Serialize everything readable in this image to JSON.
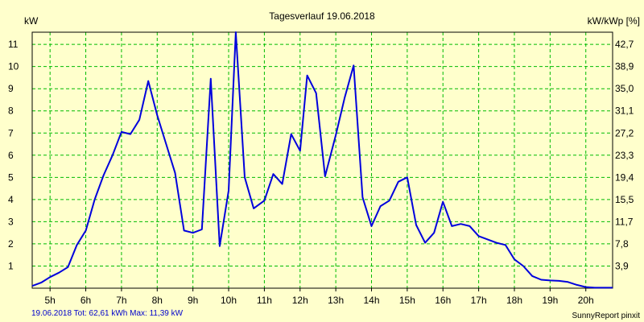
{
  "chart_data": {
    "type": "line",
    "title": "Tagesverlauf 19.06.2018",
    "ylabel_left": "kW",
    "ylabel_right": "kW/kWp [%]",
    "xlim": [
      4.5,
      20.75
    ],
    "ylim": [
      0,
      11.55
    ],
    "grid": true,
    "x_ticks": [
      {
        "value": 5,
        "label": "5h"
      },
      {
        "value": 6,
        "label": "6h"
      },
      {
        "value": 7,
        "label": "7h"
      },
      {
        "value": 8,
        "label": "8h"
      },
      {
        "value": 9,
        "label": "9h"
      },
      {
        "value": 10,
        "label": "10h"
      },
      {
        "value": 11,
        "label": "11h"
      },
      {
        "value": 12,
        "label": "12h"
      },
      {
        "value": 13,
        "label": "13h"
      },
      {
        "value": 14,
        "label": "14h"
      },
      {
        "value": 15,
        "label": "15h"
      },
      {
        "value": 16,
        "label": "16h"
      },
      {
        "value": 17,
        "label": "17h"
      },
      {
        "value": 18,
        "label": "18h"
      },
      {
        "value": 19,
        "label": "19h"
      },
      {
        "value": 20,
        "label": "20h"
      }
    ],
    "y_ticks_left": [
      {
        "value": 1,
        "label": "1"
      },
      {
        "value": 2,
        "label": "2"
      },
      {
        "value": 3,
        "label": "3"
      },
      {
        "value": 4,
        "label": "4"
      },
      {
        "value": 5,
        "label": "5"
      },
      {
        "value": 6,
        "label": "6"
      },
      {
        "value": 7,
        "label": "7"
      },
      {
        "value": 8,
        "label": "8"
      },
      {
        "value": 9,
        "label": "9"
      },
      {
        "value": 10,
        "label": "10"
      },
      {
        "value": 11,
        "label": "11"
      }
    ],
    "y_ticks_right": [
      {
        "value": 1,
        "label": "3,9"
      },
      {
        "value": 2,
        "label": "7,8"
      },
      {
        "value": 3,
        "label": "11,7"
      },
      {
        "value": 4,
        "label": "15,5"
      },
      {
        "value": 5,
        "label": "19,4"
      },
      {
        "value": 6,
        "label": "23,3"
      },
      {
        "value": 7,
        "label": "27,2"
      },
      {
        "value": 8,
        "label": "31,1"
      },
      {
        "value": 9,
        "label": "35,0"
      },
      {
        "value": 10,
        "label": "38,9"
      },
      {
        "value": 11,
        "label": "42,7"
      }
    ],
    "series": [
      {
        "color": "#0000dd",
        "points": [
          [
            4.5,
            0.1
          ],
          [
            4.75,
            0.25
          ],
          [
            5.0,
            0.5
          ],
          [
            5.25,
            0.7
          ],
          [
            5.5,
            0.95
          ],
          [
            5.75,
            1.95
          ],
          [
            6.0,
            2.6
          ],
          [
            6.25,
            4.0
          ],
          [
            6.5,
            5.1
          ],
          [
            6.75,
            6.0
          ],
          [
            7.0,
            7.05
          ],
          [
            7.25,
            6.95
          ],
          [
            7.5,
            7.6
          ],
          [
            7.75,
            9.35
          ],
          [
            8.0,
            7.8
          ],
          [
            8.25,
            6.5
          ],
          [
            8.5,
            5.2
          ],
          [
            8.75,
            2.6
          ],
          [
            9.0,
            2.5
          ],
          [
            9.25,
            2.65
          ],
          [
            9.5,
            9.45
          ],
          [
            9.75,
            1.9
          ],
          [
            10.0,
            4.4
          ],
          [
            10.2,
            11.55
          ],
          [
            10.45,
            5.0
          ],
          [
            10.7,
            3.6
          ],
          [
            11.0,
            3.95
          ],
          [
            11.25,
            5.15
          ],
          [
            11.5,
            4.7
          ],
          [
            11.75,
            6.95
          ],
          [
            12.0,
            6.2
          ],
          [
            12.2,
            9.6
          ],
          [
            12.45,
            8.8
          ],
          [
            12.7,
            5.05
          ],
          [
            13.0,
            6.9
          ],
          [
            13.25,
            8.6
          ],
          [
            13.5,
            10.05
          ],
          [
            13.75,
            4.1
          ],
          [
            14.0,
            2.8
          ],
          [
            14.25,
            3.7
          ],
          [
            14.5,
            3.95
          ],
          [
            14.75,
            4.8
          ],
          [
            15.0,
            5.0
          ],
          [
            15.25,
            2.85
          ],
          [
            15.5,
            2.05
          ],
          [
            15.75,
            2.5
          ],
          [
            16.0,
            3.9
          ],
          [
            16.25,
            2.8
          ],
          [
            16.5,
            2.9
          ],
          [
            16.75,
            2.8
          ],
          [
            17.0,
            2.35
          ],
          [
            17.25,
            2.2
          ],
          [
            17.5,
            2.05
          ],
          [
            17.75,
            1.95
          ],
          [
            18.0,
            1.3
          ],
          [
            18.25,
            1.0
          ],
          [
            18.5,
            0.55
          ],
          [
            18.75,
            0.38
          ],
          [
            19.0,
            0.35
          ],
          [
            19.25,
            0.33
          ],
          [
            19.5,
            0.28
          ],
          [
            19.75,
            0.15
          ],
          [
            20.0,
            0.05
          ],
          [
            20.25,
            0.02
          ],
          [
            20.5,
            0.02
          ],
          [
            20.75,
            0.02
          ]
        ]
      }
    ]
  },
  "footer": {
    "summary": "19.06.2018 Tot: 62,61 kWh Max: 11,39 kW",
    "credit": "SunnyReport pinxit"
  },
  "colors": {
    "background": "#ffffcc",
    "grid": "#00bb00",
    "line": "#0000dd",
    "summary_text": "#0000cc"
  }
}
